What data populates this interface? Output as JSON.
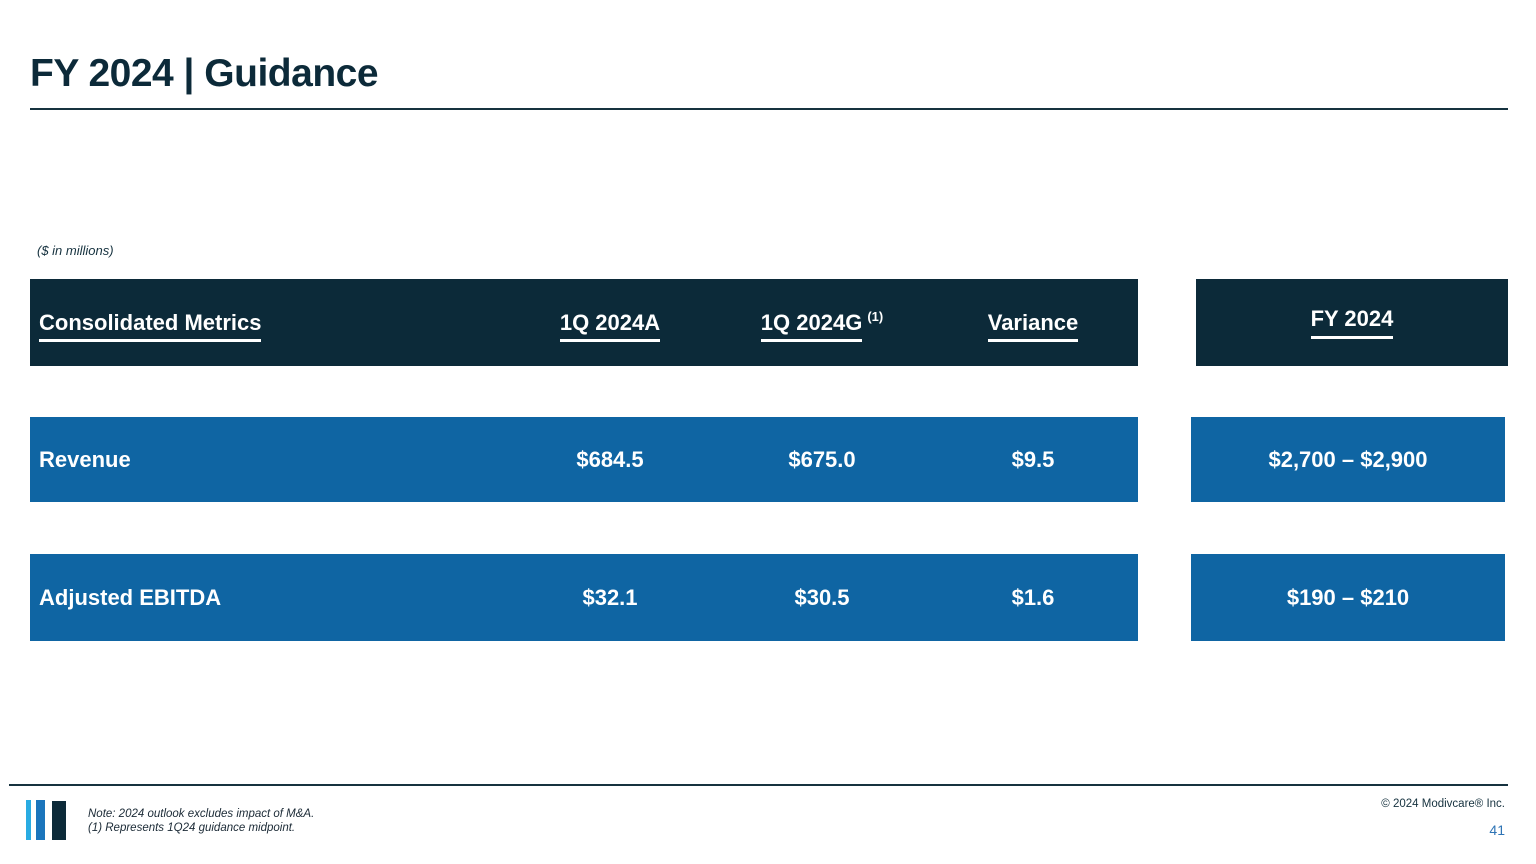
{
  "colors": {
    "dark_navy": "#0C2A39",
    "row_blue": "#0F65A3",
    "page_number_blue": "#2E74B5",
    "logo_light_blue": "#29ABE2",
    "logo_mid_blue": "#1B75BC"
  },
  "header": {
    "title": "FY 2024 | Guidance"
  },
  "units_note": "($ in millions)",
  "table": {
    "header": {
      "metrics": "Consolidated Metrics",
      "actual": "1Q 2024A",
      "guidance": "1Q 2024G",
      "guidance_footnote": "(1)",
      "variance": "Variance",
      "fy": "FY 2024"
    },
    "rows": [
      {
        "label": "Revenue",
        "actual": "$684.5",
        "guidance": "$675.0",
        "variance": "$9.5",
        "fy": "$2,700 – $2,900"
      },
      {
        "label": "Adjusted EBITDA",
        "actual": "$32.1",
        "guidance": "$30.5",
        "variance": "$1.6",
        "fy": "$190 – $210"
      }
    ]
  },
  "footer": {
    "note_line1": "Note: 2024 outlook excludes impact of M&A.",
    "note_line2": "(1) Represents 1Q24 guidance midpoint.",
    "copyright": "© 2024 Modivcare® Inc.",
    "page_number": "41"
  }
}
